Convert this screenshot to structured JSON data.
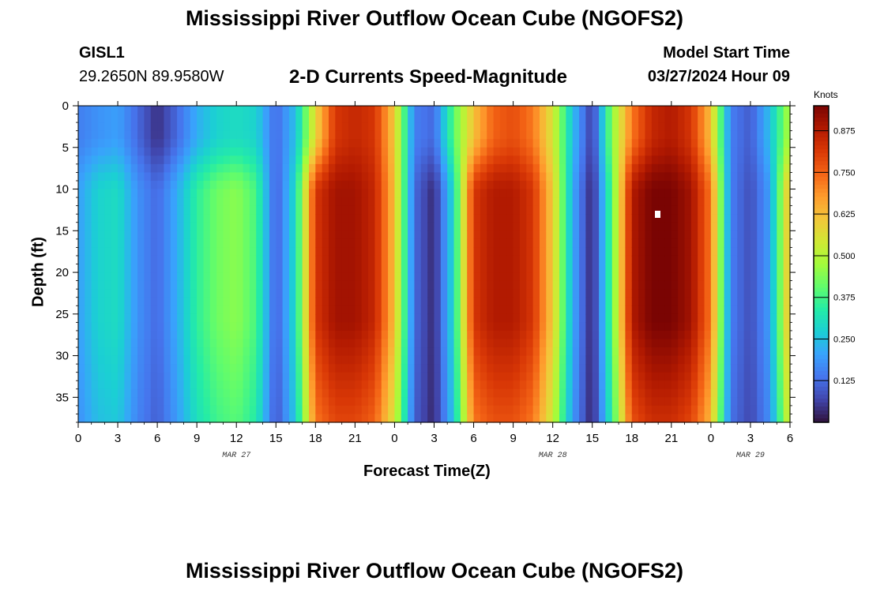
{
  "header": {
    "title": "Mississippi River Outflow Ocean Cube (NGOFS2)",
    "station_id": "GISL1",
    "station_coords": "29.2650N  89.9580W",
    "subtitle": "2-D Currents Speed-Magnitude",
    "model_start_label": "Model Start Time",
    "model_start_value": "03/27/2024 Hour 09"
  },
  "footer": {
    "title": "Mississippi River Outflow Ocean Cube (NGOFS2)"
  },
  "colors": {
    "background": "#ffffff",
    "colormap": [
      "#30123b",
      "#4145ab",
      "#4675ed",
      "#39a2fc",
      "#1bcfd4",
      "#24eca6",
      "#61fc6c",
      "#a4fc3b",
      "#d1e834",
      "#f3c63a",
      "#fe9b2d",
      "#f36315",
      "#d93806",
      "#b11901",
      "#7a0403"
    ]
  },
  "chart_data": {
    "type": "heatmap",
    "title": "2-D Currents Speed-Magnitude",
    "xlabel": "Forecast Time(Z)",
    "ylabel": "Depth (ft)",
    "colorbar_label": "Knots",
    "colorbar_ticks": [
      "0.125",
      "0.250",
      "0.375",
      "0.500",
      "0.625",
      "0.750",
      "0.875"
    ],
    "colorbar_range": [
      0,
      0.95
    ],
    "x_range_hours": [
      0,
      54
    ],
    "x_ticks": [
      "0",
      "3",
      "6",
      "9",
      "12",
      "15",
      "18",
      "21",
      "0",
      "3",
      "6",
      "9",
      "12",
      "15",
      "18",
      "21",
      "0",
      "3",
      "6"
    ],
    "date_labels": [
      {
        "label": "MAR 27",
        "at_hour": 12
      },
      {
        "label": "MAR 28",
        "at_hour": 36
      },
      {
        "label": "MAR 29",
        "at_hour": 51
      }
    ],
    "y_range_ft": [
      0,
      38
    ],
    "y_inverted": true,
    "y_ticks": [
      "0",
      "5",
      "10",
      "15",
      "20",
      "25",
      "30",
      "35"
    ],
    "time_hours": [
      0,
      1.5,
      3,
      4.5,
      6,
      7.5,
      9,
      10.5,
      12,
      13.5,
      15,
      16.5,
      18,
      19.5,
      21,
      22.5,
      24,
      25.5,
      27,
      28.5,
      30,
      31.5,
      33,
      34.5,
      36,
      37.5,
      39,
      40.5,
      42,
      43.5,
      45,
      46.5,
      48,
      49.5,
      51,
      52.5,
      54
    ],
    "surface_speed_knots": [
      0.15,
      0.18,
      0.2,
      0.12,
      0.04,
      0.12,
      0.22,
      0.28,
      0.3,
      0.28,
      0.12,
      0.25,
      0.58,
      0.82,
      0.85,
      0.82,
      0.6,
      0.15,
      0.12,
      0.4,
      0.62,
      0.75,
      0.78,
      0.72,
      0.55,
      0.25,
      0.05,
      0.45,
      0.72,
      0.85,
      0.88,
      0.82,
      0.62,
      0.15,
      0.1,
      0.25,
      0.5
    ],
    "subsurface_speed_knots": [
      0.2,
      0.28,
      0.3,
      0.18,
      0.12,
      0.22,
      0.35,
      0.42,
      0.45,
      0.38,
      0.1,
      0.3,
      0.82,
      0.9,
      0.9,
      0.85,
      0.62,
      0.12,
      0.03,
      0.3,
      0.82,
      0.88,
      0.88,
      0.82,
      0.6,
      0.22,
      0.02,
      0.4,
      0.88,
      0.95,
      0.95,
      0.9,
      0.72,
      0.15,
      0.08,
      0.2,
      0.65
    ]
  }
}
